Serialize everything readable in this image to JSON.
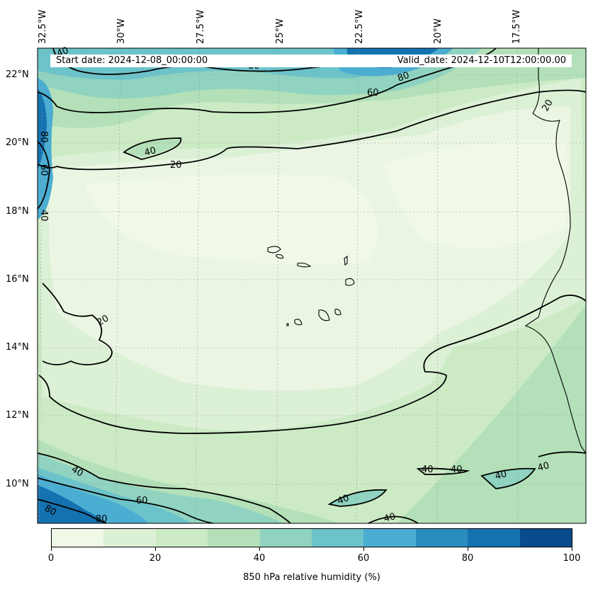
{
  "banner": {
    "start": "Start date: 2024-12-08_00:00:00",
    "valid": "Valid_date: 2024-12-10T12:00:00.00"
  },
  "lon_labels": [
    "32.5°W",
    "30°W",
    "27.5°W",
    "25°W",
    "22.5°W",
    "20°W",
    "17.5°W"
  ],
  "lat_labels": [
    "22°N",
    "20°N",
    "18°N",
    "16°N",
    "14°N",
    "12°N",
    "10°N"
  ],
  "contour_labels": [
    "40",
    "80",
    "60",
    "80",
    "80",
    "60",
    "40",
    "20",
    "40",
    "20",
    "40",
    "40",
    "40",
    "40",
    "40",
    "60",
    "80",
    "80",
    "40",
    "40",
    "20"
  ],
  "colorbar": {
    "label": "850 hPa relative humidity (%)",
    "ticks": [
      "0",
      "20",
      "40",
      "60",
      "80",
      "100"
    ],
    "colors": [
      "#f0f9e8",
      "#dcf0d6",
      "#ccebc5",
      "#b3e0b8",
      "#8fd3c0",
      "#6cc3ca",
      "#4badd2",
      "#2b8cbe",
      "#1572b0",
      "#084c8d"
    ]
  },
  "colors": {
    "low": "#f0f9e8",
    "high": "#084c8d",
    "contour": "#000000"
  }
}
